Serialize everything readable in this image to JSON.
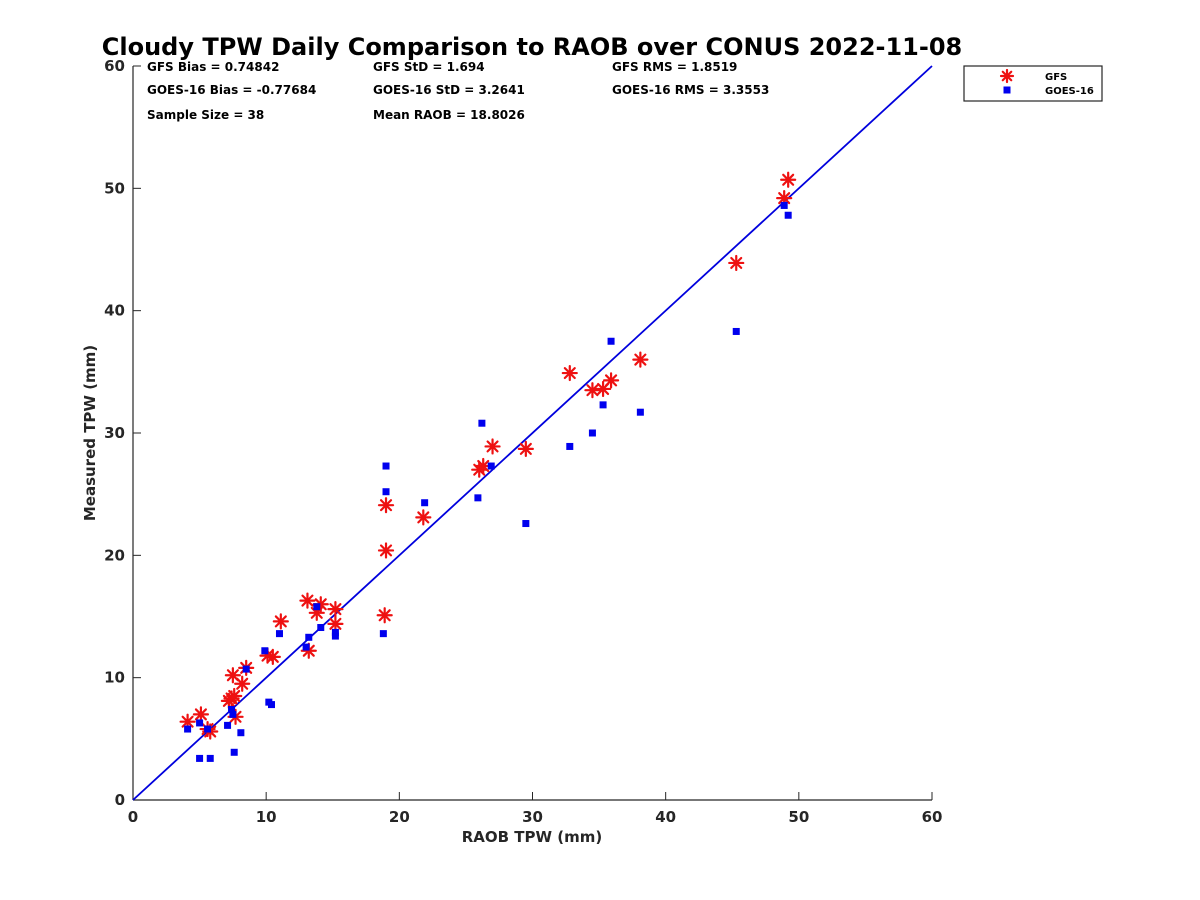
{
  "chart_data": {
    "type": "scatter",
    "title": "Cloudy TPW Daily Comparison to RAOB over CONUS 2022-11-08",
    "xlabel": "RAOB TPW (mm)",
    "ylabel": "Measured TPW (mm)",
    "xlim": [
      0,
      60
    ],
    "ylim": [
      0,
      60
    ],
    "xticks": [
      0,
      10,
      20,
      30,
      40,
      50,
      60
    ],
    "yticks": [
      0,
      10,
      20,
      30,
      40,
      50,
      60
    ],
    "grid": false,
    "legend_position": "top-right",
    "reference_line": {
      "name": "1:1 line",
      "x": [
        0,
        60
      ],
      "y": [
        0,
        60
      ],
      "color": "#0000dd"
    },
    "stats": [
      "GFS Bias = 0.74842",
      "GFS StD = 1.694",
      "GFS RMS = 1.8519",
      "GOES-16 Bias = -0.77684",
      "GOES-16 StD = 3.2641",
      "GOES-16 RMS = 3.3553",
      "Sample Size = 38",
      "Mean RAOB = 18.8026"
    ],
    "series": [
      {
        "name": "GFS",
        "marker": "asterisk",
        "color": "#ee1111",
        "points": [
          [
            4.1,
            6.4
          ],
          [
            5.1,
            7.0
          ],
          [
            5.6,
            5.8
          ],
          [
            5.8,
            5.6
          ],
          [
            7.2,
            8.1
          ],
          [
            7.4,
            8.3
          ],
          [
            7.5,
            10.2
          ],
          [
            7.6,
            8.5
          ],
          [
            7.7,
            6.8
          ],
          [
            8.2,
            9.5
          ],
          [
            8.5,
            10.8
          ],
          [
            10.1,
            11.8
          ],
          [
            10.5,
            11.7
          ],
          [
            11.1,
            14.6
          ],
          [
            13.1,
            16.3
          ],
          [
            13.2,
            12.2
          ],
          [
            13.8,
            15.3
          ],
          [
            14.1,
            16.0
          ],
          [
            15.2,
            15.6
          ],
          [
            15.2,
            14.4
          ],
          [
            18.9,
            15.1
          ],
          [
            19.0,
            20.4
          ],
          [
            19.0,
            24.1
          ],
          [
            21.8,
            23.1
          ],
          [
            26.0,
            27.0
          ],
          [
            26.3,
            27.3
          ],
          [
            27.0,
            28.9
          ],
          [
            29.5,
            28.7
          ],
          [
            32.8,
            34.9
          ],
          [
            34.5,
            33.5
          ],
          [
            35.3,
            33.6
          ],
          [
            35.9,
            34.3
          ],
          [
            38.1,
            36.0
          ],
          [
            45.3,
            43.9
          ],
          [
            48.9,
            49.2
          ],
          [
            49.2,
            50.7
          ]
        ]
      },
      {
        "name": "GOES-16",
        "marker": "square",
        "color": "#0000ee",
        "points": [
          [
            4.1,
            5.8
          ],
          [
            5.0,
            6.3
          ],
          [
            5.0,
            3.4
          ],
          [
            5.6,
            5.8
          ],
          [
            5.8,
            3.4
          ],
          [
            7.1,
            6.1
          ],
          [
            7.4,
            7.4
          ],
          [
            7.5,
            7.0
          ],
          [
            7.6,
            3.9
          ],
          [
            8.1,
            5.5
          ],
          [
            8.5,
            10.7
          ],
          [
            9.9,
            12.2
          ],
          [
            10.2,
            8.0
          ],
          [
            10.4,
            7.8
          ],
          [
            11.0,
            13.6
          ],
          [
            13.0,
            12.5
          ],
          [
            13.2,
            13.3
          ],
          [
            13.8,
            15.8
          ],
          [
            14.1,
            14.1
          ],
          [
            15.2,
            13.4
          ],
          [
            15.2,
            13.7
          ],
          [
            18.8,
            13.6
          ],
          [
            19.0,
            25.2
          ],
          [
            19.0,
            27.3
          ],
          [
            21.9,
            24.3
          ],
          [
            25.9,
            24.7
          ],
          [
            26.2,
            30.8
          ],
          [
            26.9,
            27.3
          ],
          [
            29.5,
            22.6
          ],
          [
            32.8,
            28.9
          ],
          [
            34.5,
            30.0
          ],
          [
            35.3,
            32.3
          ],
          [
            35.9,
            37.5
          ],
          [
            38.1,
            31.7
          ],
          [
            45.3,
            38.3
          ],
          [
            48.9,
            48.6
          ],
          [
            49.2,
            47.8
          ]
        ]
      }
    ]
  }
}
